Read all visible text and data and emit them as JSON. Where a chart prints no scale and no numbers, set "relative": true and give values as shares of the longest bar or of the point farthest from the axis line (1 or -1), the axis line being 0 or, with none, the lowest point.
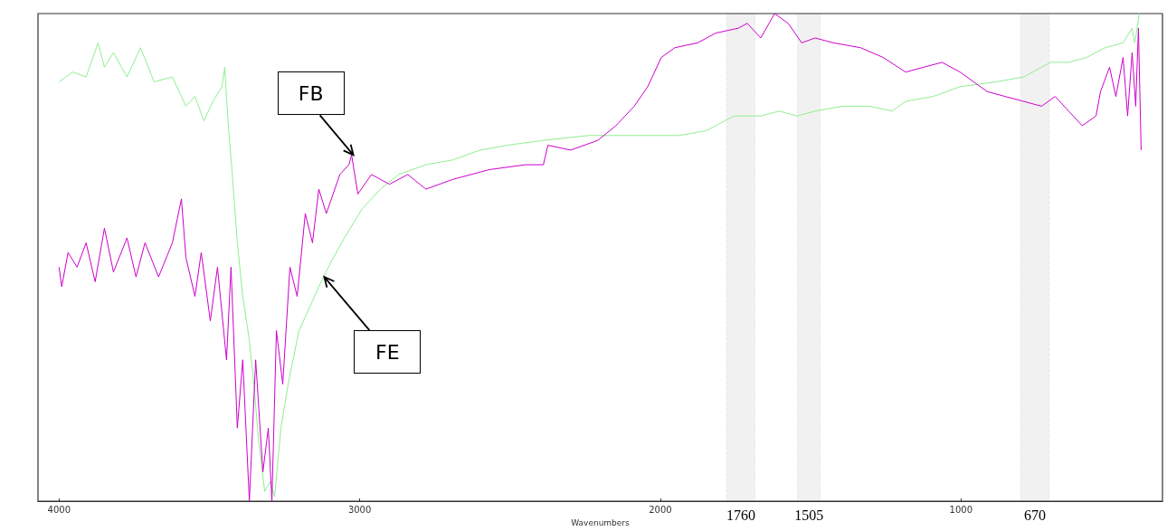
{
  "chart_data": {
    "type": "line",
    "xlabel": "Wavenumbers",
    "relative": true,
    "xlim": [
      4070,
      330
    ],
    "xticks": [
      4000,
      3000,
      2000,
      1000
    ],
    "grid": false,
    "marker": "none",
    "line_style": "solid",
    "series": [
      {
        "color": "#90ee90",
        "x": [
          4000,
          3955,
          3910,
          3870,
          3849,
          3819,
          3774,
          3729,
          3684,
          3623,
          3578,
          3548,
          3518,
          3488,
          3458,
          3449,
          3437,
          3425,
          3407,
          3389,
          3367,
          3352,
          3337,
          3316,
          3298,
          3283,
          3262,
          3238,
          3202,
          3172,
          3136,
          3096,
          3051,
          2991,
          2931,
          2870,
          2780,
          2690,
          2599,
          2509,
          2389,
          2238,
          2087,
          1937,
          1846,
          1756,
          1666,
          1605,
          1545,
          1485,
          1395,
          1304,
          1229,
          1184,
          1093,
          1003,
          883,
          792,
          702,
          642,
          582,
          521,
          461,
          431,
          422,
          407
        ],
        "values": [
          0.86,
          0.88,
          0.87,
          0.94,
          0.89,
          0.92,
          0.87,
          0.93,
          0.86,
          0.87,
          0.81,
          0.83,
          0.78,
          0.82,
          0.85,
          0.89,
          0.77,
          0.68,
          0.53,
          0.42,
          0.33,
          0.24,
          0.13,
          0.02,
          0.04,
          0.01,
          0.15,
          0.24,
          0.35,
          0.39,
          0.44,
          0.49,
          0.54,
          0.6,
          0.64,
          0.67,
          0.69,
          0.7,
          0.72,
          0.73,
          0.74,
          0.75,
          0.75,
          0.75,
          0.76,
          0.79,
          0.79,
          0.8,
          0.79,
          0.8,
          0.81,
          0.81,
          0.8,
          0.82,
          0.83,
          0.85,
          0.86,
          0.87,
          0.9,
          0.9,
          0.91,
          0.93,
          0.94,
          0.97,
          0.94,
          1.0
        ]
      },
      {
        "color": "#cc00cc",
        "x": [
          4000,
          3991,
          3970,
          3940,
          3910,
          3880,
          3849,
          3819,
          3774,
          3744,
          3714,
          3669,
          3623,
          3593,
          3578,
          3548,
          3527,
          3497,
          3473,
          3443,
          3428,
          3407,
          3389,
          3367,
          3346,
          3322,
          3304,
          3292,
          3277,
          3256,
          3232,
          3208,
          3181,
          3157,
          3136,
          3111,
          3066,
          3036,
          3027,
          3006,
          2961,
          2901,
          2840,
          2780,
          2690,
          2569,
          2449,
          2389,
          2374,
          2298,
          2208,
          2148,
          2087,
          2042,
          1997,
          1952,
          1876,
          1816,
          1741,
          1711,
          1666,
          1620,
          1575,
          1530,
          1485,
          1425,
          1334,
          1259,
          1184,
          1124,
          1063,
          1003,
          913,
          853,
          792,
          732,
          687,
          627,
          597,
          551,
          536,
          506,
          485,
          461,
          446,
          431,
          419,
          410,
          401
        ],
        "values": [
          0.48,
          0.44,
          0.51,
          0.48,
          0.53,
          0.45,
          0.56,
          0.47,
          0.54,
          0.46,
          0.53,
          0.46,
          0.53,
          0.62,
          0.5,
          0.42,
          0.51,
          0.37,
          0.48,
          0.29,
          0.48,
          0.15,
          0.29,
          0.0,
          0.29,
          0.06,
          0.15,
          0.0,
          0.35,
          0.24,
          0.48,
          0.42,
          0.59,
          0.53,
          0.64,
          0.59,
          0.67,
          0.69,
          0.71,
          0.63,
          0.67,
          0.65,
          0.67,
          0.64,
          0.66,
          0.68,
          0.69,
          0.69,
          0.73,
          0.72,
          0.74,
          0.77,
          0.81,
          0.85,
          0.91,
          0.93,
          0.94,
          0.96,
          0.97,
          0.98,
          0.95,
          1.0,
          0.98,
          0.94,
          0.95,
          0.94,
          0.93,
          0.91,
          0.88,
          0.89,
          0.9,
          0.88,
          0.84,
          0.83,
          0.82,
          0.81,
          0.83,
          0.79,
          0.77,
          0.79,
          0.84,
          0.89,
          0.83,
          0.91,
          0.79,
          0.92,
          0.81,
          0.97,
          0.72
        ]
      }
    ],
    "bands": [
      {
        "axis": "x",
        "from": 1780,
        "to": 1685,
        "label": "1760",
        "color": "#333333"
      },
      {
        "axis": "x",
        "from": 1544,
        "to": 1468,
        "label": "1505",
        "color": "#333333"
      },
      {
        "axis": "x",
        "from": 802,
        "to": 706,
        "label": "670",
        "color": "#333333"
      }
    ],
    "annotations": [
      {
        "text": "FB",
        "x": 3021,
        "y": 0.71
      },
      {
        "text": "FE",
        "x": 3118,
        "y": 0.46
      }
    ]
  }
}
